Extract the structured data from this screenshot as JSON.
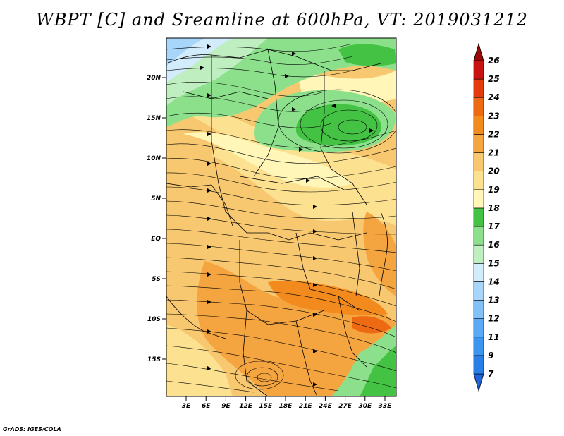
{
  "title": "WBPT [C] and Sreamline at 600hPa, VT: 2019031212",
  "credit": "GrADS: IGES/COLA",
  "map": {
    "lat_ticks": [
      "20N",
      "15N",
      "10N",
      "5N",
      "EQ",
      "5S",
      "10S",
      "15S"
    ],
    "lon_ticks": [
      "3E",
      "6E",
      "9E",
      "12E",
      "15E",
      "18E",
      "21E",
      "24E",
      "27E",
      "30E",
      "33E"
    ]
  },
  "colorbar": {
    "labels": [
      "7",
      "9",
      "11",
      "12",
      "13",
      "14",
      "15",
      "16",
      "17",
      "18",
      "19",
      "20",
      "21",
      "22",
      "23",
      "24",
      "25",
      "26"
    ],
    "colors": [
      "#1e64dc",
      "#2a7ee8",
      "#3c96f0",
      "#5aaaf5",
      "#82c0f8",
      "#a8d6fa",
      "#d2ecfc",
      "#bfeec0",
      "#8ce08c",
      "#44c244",
      "#fff6b8",
      "#fce290",
      "#f8c870",
      "#f5a540",
      "#f28a1e",
      "#ee6a12",
      "#e43a0e",
      "#c81410",
      "#a00808"
    ]
  }
}
